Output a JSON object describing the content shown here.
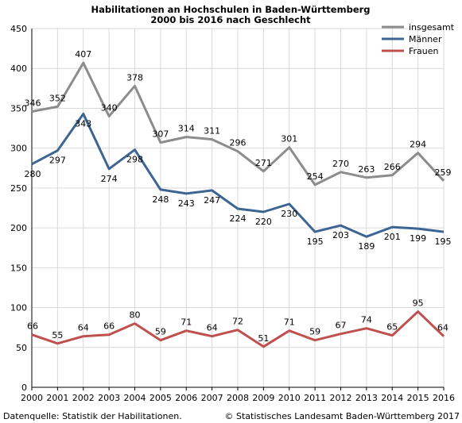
{
  "chart_data": {
    "type": "line",
    "title": "Habilitationen an Hochschulen in Baden-Württemberg",
    "subtitle": "2000 bis 2016 nach Geschlecht",
    "xlabel": "",
    "ylabel": "",
    "categories": [
      "2000",
      "2001",
      "2002",
      "2003",
      "2004",
      "2005",
      "2006",
      "2007",
      "2008",
      "2009",
      "2010",
      "2011",
      "2012",
      "2013",
      "2014",
      "2015",
      "2016"
    ],
    "ylim": [
      0,
      450
    ],
    "yticks": [
      0,
      50,
      100,
      150,
      200,
      250,
      300,
      350,
      400,
      450
    ],
    "grid": true,
    "legend_position": "top-right",
    "series": [
      {
        "name": "insgesamt",
        "color": "#8c8c8c",
        "values": [
          346,
          352,
          407,
          340,
          378,
          307,
          314,
          311,
          296,
          271,
          301,
          254,
          270,
          263,
          266,
          294,
          259
        ]
      },
      {
        "name": "Männer",
        "color": "#3d6594",
        "values": [
          280,
          297,
          343,
          274,
          298,
          248,
          243,
          247,
          224,
          220,
          230,
          195,
          203,
          189,
          201,
          199,
          195
        ]
      },
      {
        "name": "Frauen",
        "color": "#c0504d",
        "values": [
          66,
          55,
          64,
          66,
          80,
          59,
          71,
          64,
          72,
          51,
          71,
          59,
          67,
          74,
          65,
          95,
          64
        ]
      }
    ]
  },
  "footer": {
    "source": "Datenquelle: Statistik der Habilitationen.",
    "copyright": "© Statistisches Landesamt Baden-Württemberg 2017"
  }
}
